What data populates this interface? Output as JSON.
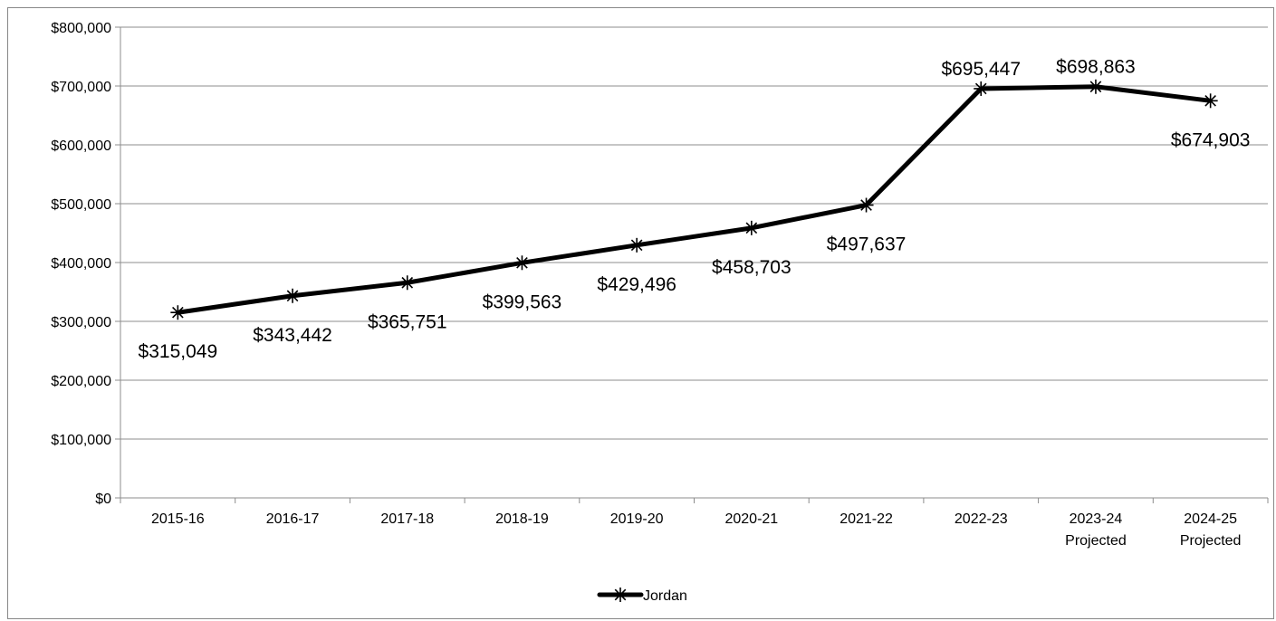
{
  "chart_data": {
    "type": "line",
    "title": "",
    "xlabel": "",
    "ylabel": "",
    "categories": [
      [
        "2015-16"
      ],
      [
        "2016-17"
      ],
      [
        "2017-18"
      ],
      [
        "2018-19"
      ],
      [
        "2019-20"
      ],
      [
        "2020-21"
      ],
      [
        "2021-22"
      ],
      [
        "2022-23"
      ],
      [
        "2023-24",
        "Projected"
      ],
      [
        "2024-25",
        "Projected"
      ]
    ],
    "series": [
      {
        "name": "Jordan",
        "color": "#000000",
        "marker": "asterisk",
        "values": [
          315049,
          343442,
          365751,
          399563,
          429496,
          458703,
          497637,
          695447,
          698863,
          674903
        ],
        "labels": [
          "$315,049",
          "$343,442",
          "$365,751",
          "$399,563",
          "$429,496",
          "$458,703",
          "$497,637",
          "$695,447",
          "$698,863",
          "$674,903"
        ]
      }
    ],
    "ylim": [
      0,
      800000
    ],
    "yticks": [
      0,
      100000,
      200000,
      300000,
      400000,
      500000,
      600000,
      700000,
      800000
    ],
    "ytick_labels": [
      "$0",
      "$100,000",
      "$200,000",
      "$300,000",
      "$400,000",
      "$500,000",
      "$600,000",
      "$700,000",
      "$800,000"
    ],
    "grid": "horizontal",
    "legend": "bottom-center",
    "label_placement": [
      "below",
      "below",
      "below",
      "below",
      "below",
      "below",
      "below",
      "above",
      "above",
      "below"
    ]
  }
}
